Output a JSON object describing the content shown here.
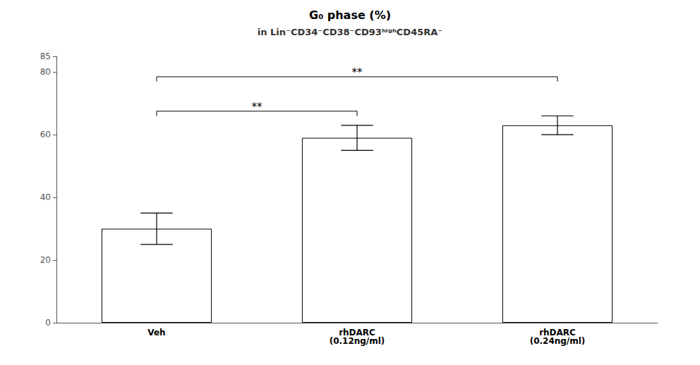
{
  "chart_data": {
    "type": "bar",
    "title": "G₀ phase (%)",
    "subtitle": "in Lin⁻CD34⁻CD38⁻CD93ʰⁱᵍʰCD45RA⁻",
    "categories": [
      "Veh",
      "rhDARC\n(0.12ng/ml)",
      "rhDARC\n(0.24ng/ml)"
    ],
    "values": [
      30,
      59,
      63
    ],
    "errors": [
      5,
      4,
      3
    ],
    "color": "#ffffff",
    "ylim": [
      0,
      85
    ],
    "yticks": [
      0,
      20,
      40,
      60,
      80
    ],
    "grid": false,
    "annotations": [
      {
        "text": "**",
        "from": "Veh",
        "to": "rhDARC\n(0.12ng/ml)"
      },
      {
        "text": "**",
        "from": "Veh",
        "to": "rhDARC\n(0.24ng/ml)"
      }
    ]
  }
}
